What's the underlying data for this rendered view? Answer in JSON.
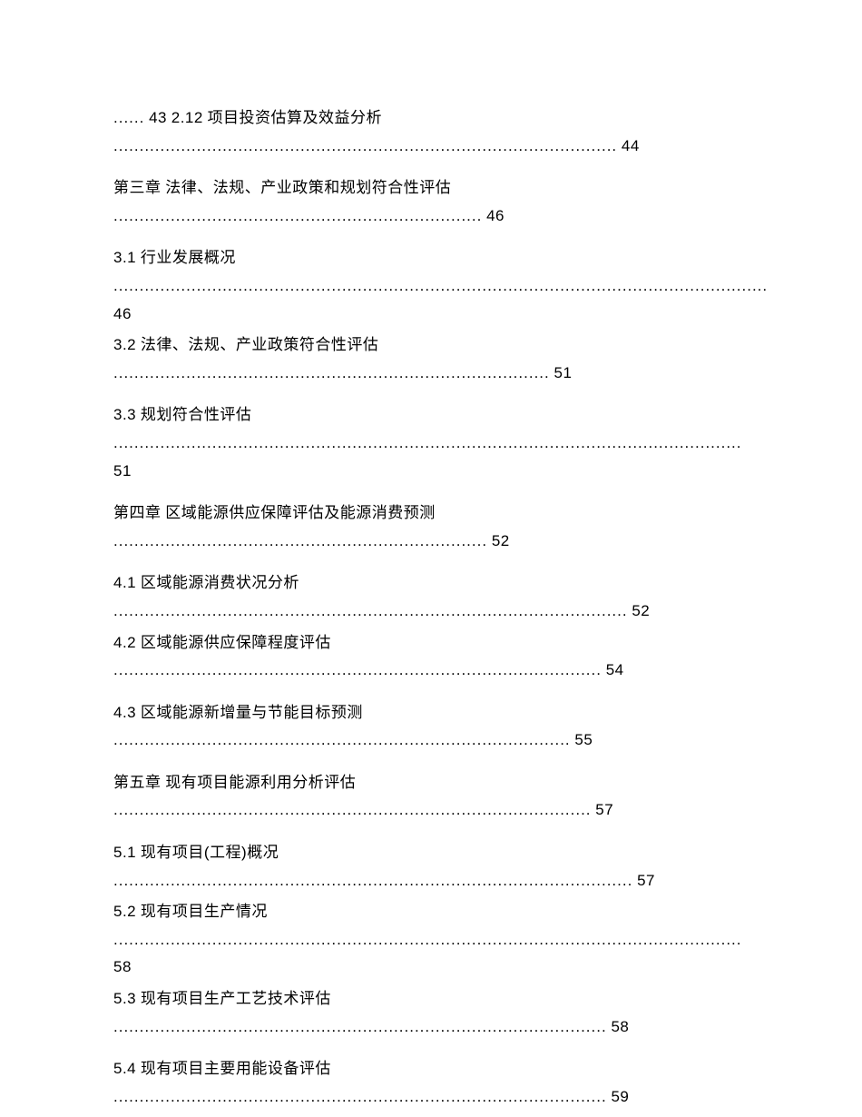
{
  "entries": [
    {
      "prefix_dots": "......",
      "prefix_page": "43",
      "section_num": "2.12",
      "title": "项目投资估算及效益分析",
      "dots": ".................................................................................................",
      "page": "44",
      "class": "toc-entry"
    },
    {
      "prefix_dots": "",
      "prefix_page": "",
      "section_num": "第三章",
      "title": "法律、法规、产业政策和规划符合性评估",
      "dots": ".......................................................................",
      "page": "46",
      "class": "toc-entry"
    },
    {
      "prefix_dots": "",
      "prefix_page": "",
      "section_num": "3.1",
      "title": "行业发展概况",
      "dots": "..............................................................................................................................",
      "page": "46",
      "class": "toc-entry-tight"
    },
    {
      "prefix_dots": "",
      "prefix_page": "",
      "section_num": "3.2",
      "title": "法律、法规、产业政策符合性评估",
      "dots": "....................................................................................",
      "page": "51",
      "class": "toc-entry"
    },
    {
      "prefix_dots": "",
      "prefix_page": "",
      "section_num": "3.3",
      "title": "规划符合性评估",
      "dots": ".........................................................................................................................",
      "page": "51",
      "class": "toc-entry"
    },
    {
      "prefix_dots": "",
      "prefix_page": "",
      "section_num": "第四章",
      "title": "区域能源供应保障评估及能源消费预测",
      "dots": "........................................................................",
      "page": "52",
      "class": "toc-entry"
    },
    {
      "prefix_dots": "",
      "prefix_page": "",
      "section_num": "4.1",
      "title": "区域能源消费状况分析",
      "dots": "...................................................................................................",
      "page": "52",
      "class": "toc-entry-tight"
    },
    {
      "prefix_dots": "",
      "prefix_page": "",
      "section_num": "4.2",
      "title": "区域能源供应保障程度评估",
      "dots": "..............................................................................................",
      "page": "54",
      "class": "toc-entry"
    },
    {
      "prefix_dots": "",
      "prefix_page": "",
      "section_num": "4.3",
      "title": "区域能源新增量与节能目标预测",
      "dots": "........................................................................................",
      "page": "55",
      "class": "toc-entry"
    },
    {
      "prefix_dots": "",
      "prefix_page": "",
      "section_num": "第五章",
      "title": "现有项目能源利用分析评估",
      "dots": "............................................................................................",
      "page": "57",
      "class": "toc-entry"
    },
    {
      "prefix_dots": "",
      "prefix_page": "",
      "section_num": "5.1",
      "title": "现有项目(工程)概况",
      "dots": "....................................................................................................",
      "page": "57",
      "class": "toc-entry-tight"
    },
    {
      "prefix_dots": "",
      "prefix_page": "",
      "section_num": "5.2",
      "title": "现有项目生产情况",
      "dots": ".........................................................................................................................",
      "page": "58",
      "class": "toc-entry-tight"
    },
    {
      "prefix_dots": "",
      "prefix_page": "",
      "section_num": "5.3",
      "title": "现有项目生产工艺技术评估",
      "dots": "...............................................................................................",
      "page": "58",
      "class": "toc-entry"
    },
    {
      "prefix_dots": "",
      "prefix_page": "",
      "section_num": "5.4",
      "title": "现有项目主要用能设备评估",
      "dots": "...............................................................................................",
      "page": "59",
      "class": "toc-entry"
    }
  ]
}
